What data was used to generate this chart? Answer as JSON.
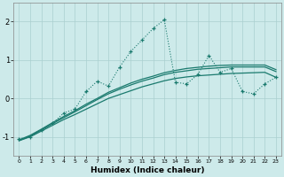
{
  "xlabel": "Humidex (Indice chaleur)",
  "xlim": [
    -0.5,
    23.5
  ],
  "ylim": [
    -1.5,
    2.5
  ],
  "yticks": [
    -1,
    0,
    1,
    2
  ],
  "xticks": [
    0,
    1,
    2,
    3,
    4,
    5,
    6,
    7,
    8,
    9,
    10,
    11,
    12,
    13,
    14,
    15,
    16,
    17,
    18,
    19,
    20,
    21,
    22,
    23
  ],
  "bg_color": "#cdeaea",
  "line_color": "#1a7a6e",
  "grid_color": "#aacfcf",
  "smooth_line1_x": [
    0,
    1,
    2,
    3,
    4,
    5,
    6,
    7,
    8,
    9,
    10,
    11,
    12,
    13,
    14,
    15,
    16,
    17,
    18,
    19,
    20,
    21,
    22,
    23
  ],
  "smooth_line1_y": [
    -1.1,
    -1.0,
    -0.85,
    -0.7,
    -0.55,
    -0.42,
    -0.28,
    -0.14,
    0.0,
    0.1,
    0.2,
    0.3,
    0.38,
    0.46,
    0.52,
    0.56,
    0.59,
    0.61,
    0.63,
    0.65,
    0.66,
    0.67,
    0.68,
    0.55
  ],
  "smooth_line2_x": [
    0,
    1,
    2,
    3,
    4,
    5,
    6,
    7,
    8,
    9,
    10,
    11,
    12,
    13,
    14,
    15,
    16,
    17,
    18,
    19,
    20,
    21,
    22,
    23
  ],
  "smooth_line2_y": [
    -1.1,
    -0.98,
    -0.82,
    -0.66,
    -0.5,
    -0.35,
    -0.19,
    -0.03,
    0.12,
    0.24,
    0.35,
    0.45,
    0.53,
    0.62,
    0.68,
    0.72,
    0.76,
    0.78,
    0.8,
    0.82,
    0.82,
    0.82,
    0.82,
    0.7
  ],
  "smooth_line3_x": [
    0,
    1,
    2,
    3,
    4,
    5,
    6,
    7,
    8,
    9,
    10,
    11,
    12,
    13,
    14,
    15,
    16,
    17,
    18,
    19,
    20,
    21,
    22,
    23
  ],
  "smooth_line3_y": [
    -1.08,
    -0.96,
    -0.8,
    -0.63,
    -0.47,
    -0.32,
    -0.15,
    0.0,
    0.16,
    0.28,
    0.4,
    0.5,
    0.58,
    0.67,
    0.73,
    0.78,
    0.81,
    0.84,
    0.86,
    0.87,
    0.87,
    0.87,
    0.87,
    0.75
  ],
  "dotted_x": [
    0,
    1,
    2,
    3,
    4,
    5,
    6,
    7,
    8,
    9,
    10,
    11,
    12,
    13,
    14,
    15,
    16,
    17,
    18,
    19,
    20,
    21,
    22,
    23
  ],
  "dotted_y": [
    -1.05,
    -1.0,
    -0.82,
    -0.65,
    -0.38,
    -0.28,
    0.18,
    0.45,
    0.32,
    0.82,
    1.22,
    1.52,
    1.82,
    2.05,
    0.42,
    0.38,
    0.62,
    1.12,
    0.68,
    0.78,
    0.18,
    0.12,
    0.38,
    0.55
  ]
}
